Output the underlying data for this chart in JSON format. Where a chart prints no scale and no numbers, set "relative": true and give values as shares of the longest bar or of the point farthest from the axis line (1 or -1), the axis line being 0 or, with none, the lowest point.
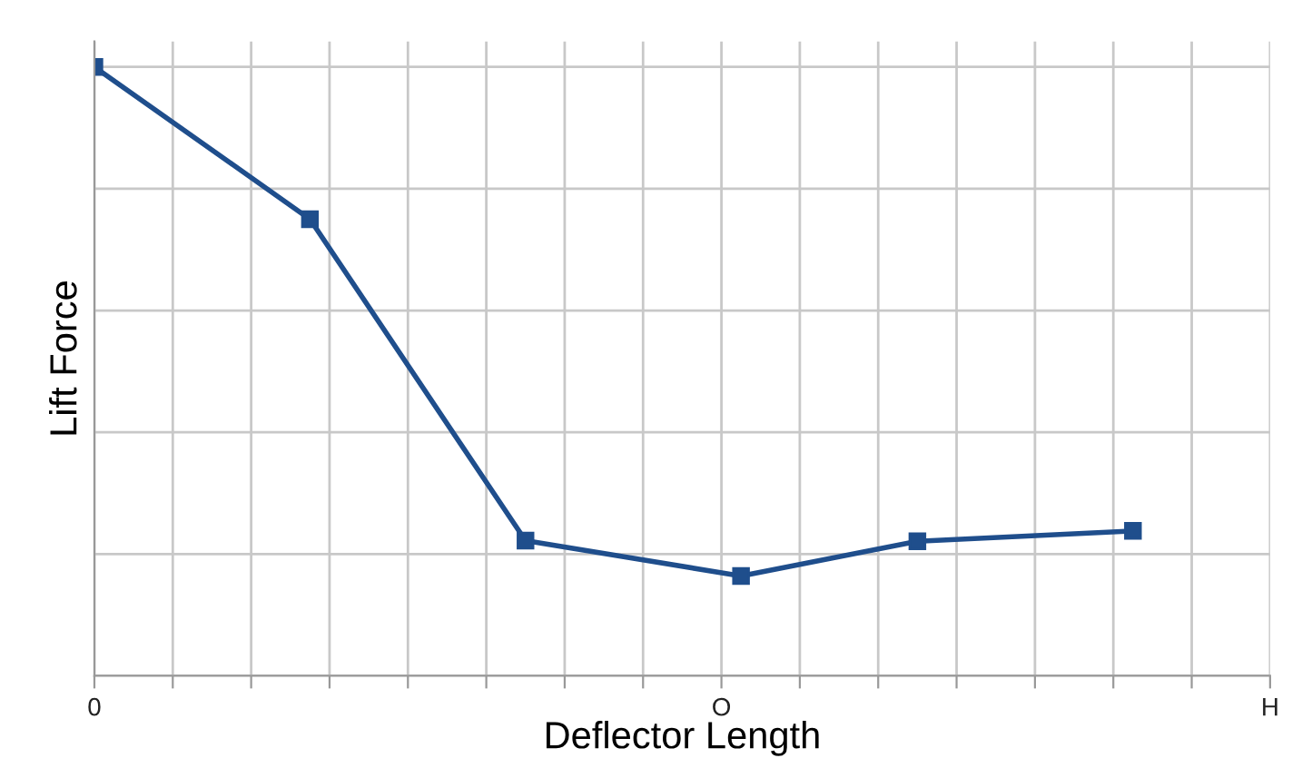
{
  "chart_data": {
    "type": "line",
    "xlabel": "Deflector Length",
    "ylabel": "Lift Force",
    "relative": true,
    "categories": [
      "0",
      null,
      null,
      null,
      null,
      null,
      null,
      null,
      null,
      null,
      null,
      null,
      null,
      null,
      null,
      null,
      null,
      null,
      null,
      null,
      null,
      null,
      null,
      null,
      null,
      null,
      null,
      null,
      null,
      null,
      null,
      null,
      "O",
      null,
      null,
      null,
      null,
      null,
      null,
      null,
      null,
      null,
      null,
      null,
      null,
      null,
      null,
      null,
      null,
      null,
      null,
      null,
      null,
      null,
      null,
      null,
      null,
      null,
      null,
      null,
      "H"
    ],
    "series": [
      {
        "color": "#1f4e8c",
        "values": [
          1,
          null,
          null,
          null,
          null,
          null,
          null,
          null,
          null,
          null,
          null,
          0.75,
          null,
          null,
          null,
          null,
          null,
          null,
          null,
          null,
          null,
          null,
          0.222,
          null,
          null,
          null,
          null,
          null,
          null,
          null,
          null,
          null,
          null,
          0.164,
          null,
          null,
          null,
          null,
          null,
          null,
          null,
          null,
          0.221,
          null,
          null,
          null,
          null,
          null,
          null,
          null,
          null,
          null,
          null,
          0.238,
          null,
          null,
          null,
          null,
          null,
          null,
          null
        ]
      }
    ],
    "grid": true,
    "marker": "square",
    "line_style": "solid",
    "legend": false
  }
}
